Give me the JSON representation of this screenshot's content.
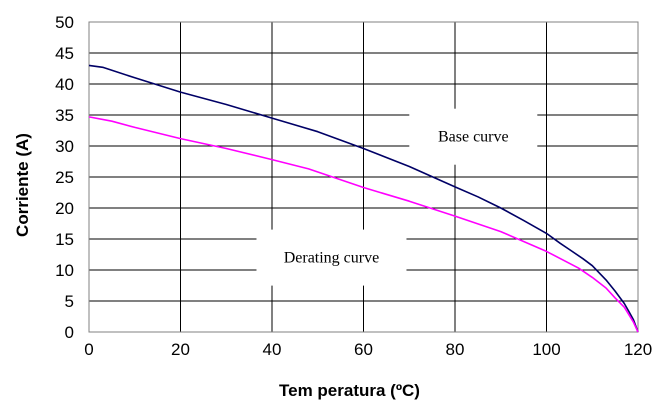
{
  "chart_data": {
    "type": "line",
    "xlabel": "Tem peratura (ºC)",
    "ylabel": "Corriente (A)",
    "xlim": [
      0,
      120
    ],
    "ylim": [
      0,
      50
    ],
    "xticks": [
      0,
      20,
      40,
      60,
      80,
      100,
      120
    ],
    "yticks": [
      0,
      5,
      10,
      15,
      20,
      25,
      30,
      35,
      40,
      45,
      50
    ],
    "grid": true,
    "series": [
      {
        "name": "Base curve",
        "color": "#000066",
        "x": [
          0,
          3,
          10,
          20,
          30,
          40,
          50,
          60,
          70,
          80,
          85,
          90,
          95,
          100,
          103,
          105,
          108,
          110,
          113,
          115,
          117,
          118,
          119,
          120
        ],
        "y": [
          43,
          42.7,
          41,
          38.7,
          36.7,
          34.5,
          32.3,
          29.6,
          26.7,
          23.4,
          21.8,
          20,
          18,
          15.9,
          14.3,
          13.3,
          11.8,
          10.7,
          8.4,
          6.6,
          4.6,
          3.3,
          2,
          0
        ]
      },
      {
        "name": "Derating curve",
        "color": "#ff00ff",
        "x": [
          0,
          5,
          10,
          20,
          30,
          40,
          48,
          60,
          70,
          80,
          90,
          100,
          107,
          110,
          113,
          115,
          117,
          119,
          120
        ],
        "y": [
          34.7,
          34,
          33,
          31.2,
          29.6,
          27.8,
          26.3,
          23.3,
          21.1,
          18.7,
          16.2,
          13,
          10.3,
          8.8,
          7.1,
          5.5,
          4,
          1.6,
          0
        ]
      }
    ],
    "annotations": [
      {
        "text": "Base curve",
        "x": 84,
        "y": 31.5
      },
      {
        "text": "Derating curve",
        "x": 53,
        "y": 12
      }
    ]
  }
}
